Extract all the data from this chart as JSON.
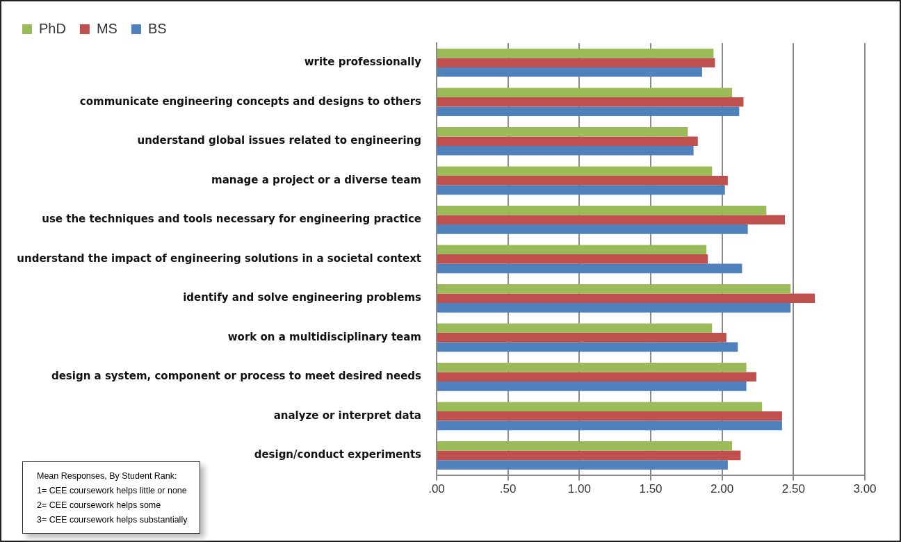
{
  "chart_data": {
    "type": "bar",
    "orientation": "horizontal",
    "categories": [
      "write professionally",
      "communicate engineering concepts and designs to others",
      "understand global issues related to engineering",
      "manage a project or a diverse team",
      "use the techniques and tools necessary for engineering practice",
      "understand the impact of engineering solutions in a societal context",
      "identify and solve engineering problems",
      "work on a multidisciplinary team",
      "design a system, component or process to meet desired needs",
      "analyze or interpret data",
      "design/conduct experiments"
    ],
    "series": [
      {
        "name": "PhD",
        "color": "#9bbb59",
        "values": [
          1.94,
          2.07,
          1.76,
          1.93,
          2.31,
          1.89,
          2.48,
          1.93,
          2.17,
          2.28,
          2.07
        ]
      },
      {
        "name": "MS",
        "color": "#c0504d",
        "values": [
          1.95,
          2.15,
          1.83,
          2.04,
          2.44,
          1.9,
          2.65,
          2.03,
          2.24,
          2.42,
          2.13
        ]
      },
      {
        "name": "BS",
        "color": "#4f81bd",
        "values": [
          1.86,
          2.12,
          1.8,
          2.02,
          2.18,
          2.14,
          2.48,
          2.11,
          2.17,
          2.42,
          2.04
        ]
      }
    ],
    "xlim": [
      0,
      3
    ],
    "xticks": [
      {
        "value": 0,
        "label": ".00"
      },
      {
        "value": 0.5,
        "label": ".50"
      },
      {
        "value": 1,
        "label": "1.00"
      },
      {
        "value": 1.5,
        "label": "1.50"
      },
      {
        "value": 2,
        "label": "2.00"
      },
      {
        "value": 2.5,
        "label": "2.50"
      },
      {
        "value": 3,
        "label": "3.00"
      }
    ],
    "grid": "x",
    "legend": "top left",
    "annotations": [
      "Mean Responses, By Student Rank:",
      "1= CEE coursework helps little or none",
      "2= CEE coursework helps some",
      "3= CEE coursework helps substantially"
    ]
  }
}
